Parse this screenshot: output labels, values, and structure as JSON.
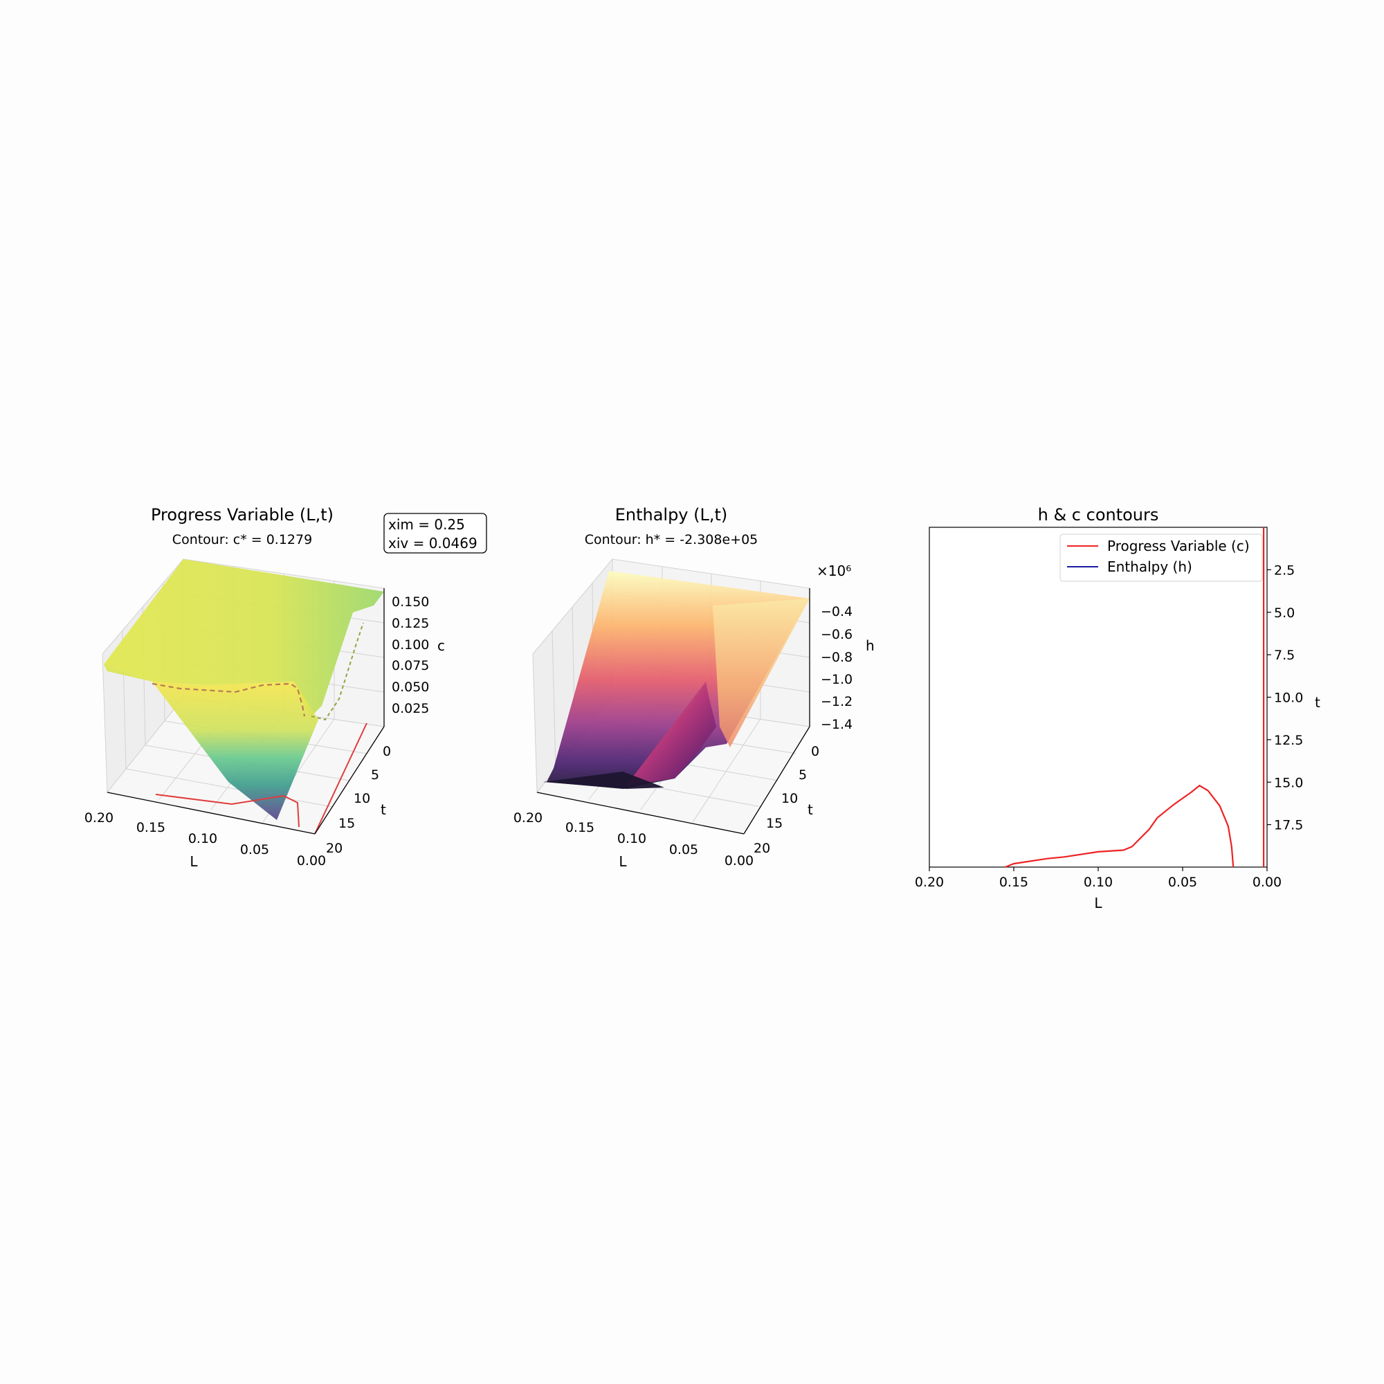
{
  "panel1": {
    "title": "Progress Variable (L,t)",
    "subtitle": "Contour: c* = 0.1279",
    "params": [
      "xim = 0.25",
      "xiv = 0.0469"
    ],
    "x_label": "L",
    "y_label": "t",
    "z_label": "c",
    "x_ticks": [
      "0.20",
      "0.15",
      "0.10",
      "0.05",
      "0.00"
    ],
    "y_ticks": [
      "0",
      "5",
      "10",
      "15",
      "20"
    ],
    "z_ticks": [
      "0.150",
      "0.125",
      "0.100",
      "0.075",
      "0.050",
      "0.025"
    ]
  },
  "panel2": {
    "title": "Enthalpy (L,t)",
    "subtitle": "Contour: h* = -2.308e+05",
    "x_label": "L",
    "y_label": "t",
    "z_label": "h",
    "offset": "×10⁶",
    "x_ticks": [
      "0.20",
      "0.15",
      "0.10",
      "0.05",
      "0.00"
    ],
    "y_ticks": [
      "0",
      "5",
      "10",
      "15",
      "20"
    ],
    "z_ticks": [
      "−0.4",
      "−0.6",
      "−0.8",
      "−1.0",
      "−1.2",
      "−1.4"
    ]
  },
  "panel3": {
    "title": "h & c contours",
    "x_label": "L",
    "y_label": "t",
    "x_ticks": [
      "0.20",
      "0.15",
      "0.10",
      "0.05",
      "0.00"
    ],
    "y_ticks": [
      "2.5",
      "5.0",
      "7.5",
      "10.0",
      "12.5",
      "15.0",
      "17.5"
    ],
    "legend": [
      "Progress Variable (c)",
      "Enthalpy (h)"
    ]
  },
  "chart_data": [
    {
      "type": "surface3d",
      "title": "Progress Variable (L,t)",
      "subtitle": "Contour: c* = 0.1279",
      "xlabel": "L",
      "ylabel": "t",
      "zlabel": "c",
      "xlim": [
        0.2,
        0.0
      ],
      "ylim": [
        0,
        20
      ],
      "zlim": [
        0.0,
        0.16
      ],
      "colormap": "viridis",
      "L": [
        0.2,
        0.15,
        0.1,
        0.05,
        0.0
      ],
      "t": [
        0,
        5,
        10,
        15,
        20
      ],
      "c": [
        [
          0.125,
          0.158,
          0.158,
          0.158,
          0.03
        ],
        [
          0.12,
          0.15,
          0.15,
          0.145,
          0.03
        ],
        [
          0.11,
          0.105,
          0.12,
          0.125,
          0.03
        ],
        [
          0.1,
          0.06,
          0.055,
          0.07,
          0.03
        ],
        [
          0.095,
          0.02,
          0.01,
          0.01,
          0.025
        ]
      ]
    },
    {
      "type": "surface3d",
      "title": "Enthalpy (L,t)",
      "subtitle": "Contour: h* = -2.308e+05",
      "xlabel": "L",
      "ylabel": "t",
      "zlabel": "h",
      "xlim": [
        0.2,
        0.0
      ],
      "ylim": [
        0,
        20
      ],
      "zlim": [
        -1.45,
        -0.3
      ],
      "z_scale": "×10⁶",
      "colormap": "magma",
      "L": [
        0.2,
        0.15,
        0.1,
        0.05,
        0.0
      ],
      "t": [
        0,
        5,
        10,
        15,
        20
      ],
      "h": [
        [
          -0.3,
          -0.35,
          -0.4,
          -0.4,
          -0.4
        ],
        [
          -0.55,
          -0.55,
          -0.6,
          -0.6,
          -0.6
        ],
        [
          -0.9,
          -0.8,
          -0.85,
          -0.9,
          -0.95
        ],
        [
          -1.2,
          -1.05,
          -1.0,
          -1.1,
          -1.3
        ],
        [
          -1.4,
          -1.4,
          -1.35,
          -1.3,
          -1.35
        ]
      ]
    },
    {
      "type": "line",
      "title": "h & c contours",
      "xlabel": "L",
      "ylabel": "t",
      "xlim": [
        0.2,
        0.0
      ],
      "ylim": [
        20,
        0
      ],
      "y_axis_side": "right",
      "legend_position": "upper right",
      "series": [
        {
          "name": "Progress Variable (c)",
          "color": "#ee2222",
          "segments": [
            [
              [
                0.155,
                20.0
              ],
              [
                0.15,
                19.8
              ],
              [
                0.13,
                19.5
              ],
              [
                0.12,
                19.4
              ],
              [
                0.1,
                19.1
              ],
              [
                0.085,
                19.0
              ],
              [
                0.08,
                18.8
              ],
              [
                0.07,
                17.8
              ],
              [
                0.065,
                17.1
              ],
              [
                0.055,
                16.3
              ],
              [
                0.045,
                15.6
              ],
              [
                0.04,
                15.2
              ],
              [
                0.035,
                15.5
              ],
              [
                0.028,
                16.4
              ],
              [
                0.023,
                17.6
              ],
              [
                0.021,
                18.8
              ],
              [
                0.02,
                20.0
              ]
            ],
            [
              [
                0.002,
                0.0
              ],
              [
                0.002,
                20.0
              ]
            ]
          ]
        },
        {
          "name": "Enthalpy (h)",
          "color": "#1a1a9e",
          "segments": []
        }
      ]
    }
  ]
}
